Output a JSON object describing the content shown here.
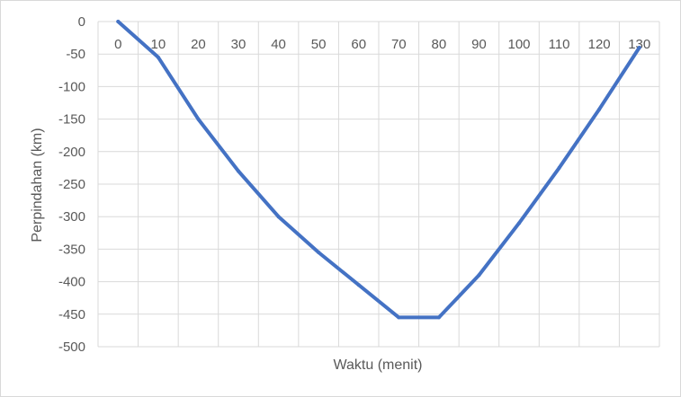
{
  "chart_data": {
    "type": "line",
    "title": "",
    "xlabel": "Waktu (menit)",
    "ylabel": "Perpindahan (km)",
    "x": [
      0,
      10,
      20,
      30,
      40,
      50,
      60,
      70,
      80,
      90,
      100,
      110,
      120,
      130
    ],
    "series": [
      {
        "values": [
          0,
          -55,
          -150,
          -230,
          -300,
          -355,
          -405,
          -455,
          -455,
          -390,
          -310,
          -225,
          -135,
          -40
        ]
      }
    ],
    "xticks": [
      "0",
      "10",
      "20",
      "30",
      "40",
      "50",
      "60",
      "70",
      "80",
      "90",
      "100",
      "110",
      "120",
      "130"
    ],
    "yticks": [
      "0",
      "-50",
      "-100",
      "-150",
      "-200",
      "-250",
      "-300",
      "-350",
      "-400",
      "-450",
      "-500"
    ],
    "xlim": [
      0,
      130
    ],
    "ylim": [
      -500,
      0
    ],
    "grid": true,
    "legend": "none",
    "line_color": "#4472c4",
    "grid_color": "#d9d9d9",
    "axis_text_color": "#595959"
  }
}
